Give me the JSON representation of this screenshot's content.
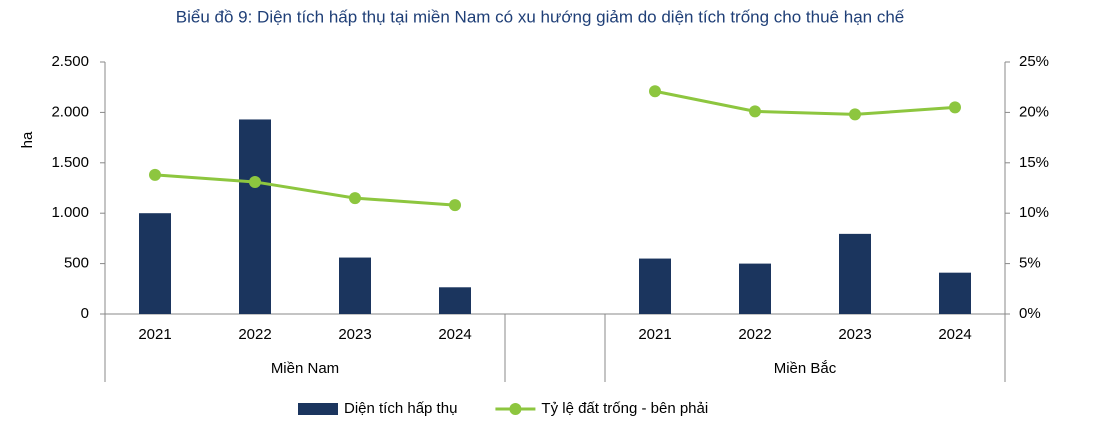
{
  "chart_data": {
    "type": "bar",
    "title": "Biểu đồ 9: Diện tích hấp thụ tại miền Nam có xu hướng giảm do diện tích trống cho thuê hạn chế",
    "ylabel": "ha",
    "categories": [
      "2021",
      "2022",
      "2023",
      "2024",
      null,
      "2021",
      "2022",
      "2023",
      "2024"
    ],
    "groups": [
      "Miền Nam",
      "Miền Bắc"
    ],
    "series": [
      {
        "name": "Diện tích hấp thụ",
        "type": "bar",
        "color": "#1b355e",
        "values": [
          1000,
          1930,
          560,
          265,
          null,
          550,
          500,
          795,
          410
        ]
      },
      {
        "name": "Tỷ lệ đất trống - bên phải",
        "type": "line",
        "axis": "y2",
        "color": "#8dc63f",
        "values": [
          13.8,
          13.1,
          11.5,
          10.8,
          null,
          22.1,
          20.1,
          19.8,
          20.5
        ]
      }
    ],
    "ylim": [
      0,
      2500
    ],
    "yticks": [
      0,
      {
        "value": 500,
        "label": "500"
      },
      {
        "value": 1000,
        "label": "1.000"
      },
      {
        "value": 1500,
        "label": "1.500"
      },
      {
        "value": 2000,
        "label": "2.000"
      },
      {
        "value": 2500,
        "label": "2.500"
      }
    ],
    "y2lim": [
      0,
      25
    ],
    "y2ticks": [
      {
        "value": 0,
        "label": "0%"
      },
      {
        "value": 5,
        "label": "5%"
      },
      {
        "value": 10,
        "label": "10%"
      },
      {
        "value": 15,
        "label": "15%"
      },
      {
        "value": 20,
        "label": "20%"
      },
      {
        "value": 25,
        "label": "25%"
      }
    ],
    "legend": "bottom",
    "grid": false
  }
}
